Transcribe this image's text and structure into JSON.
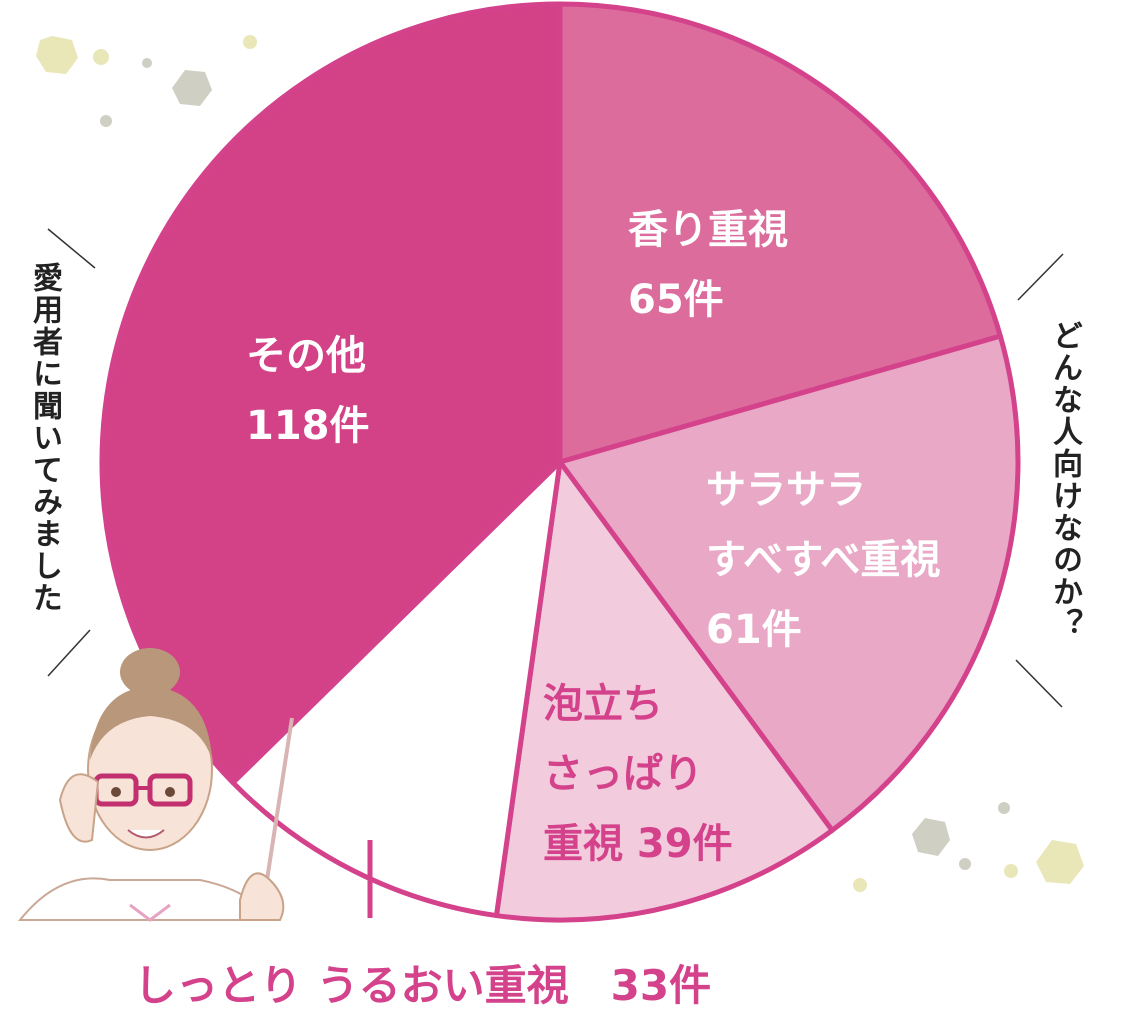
{
  "chart_data": {
    "type": "pie",
    "unit": "件",
    "slices": [
      {
        "label_lines": [
          "香り重視",
          "65件"
        ],
        "value": 65,
        "color": "#db6c9c",
        "label_color": "#ffffff"
      },
      {
        "label_lines": [
          "サラサラ",
          "すべすべ重視",
          "61件"
        ],
        "value": 61,
        "color": "#e8a8c6",
        "label_color": "#ffffff"
      },
      {
        "label_lines": [
          "泡立ち",
          "さっぱり",
          "重視 39件"
        ],
        "value": 39,
        "color": "#f2cbdd",
        "label_color": "#d3428a"
      },
      {
        "label_lines": [],
        "value": 33,
        "color": "#ffffff",
        "label_color": "#d3428a"
      },
      {
        "label_lines": [
          "その他",
          "118件"
        ],
        "value": 118,
        "color": "#d34187",
        "label_color": "#ffffff"
      }
    ],
    "stroke_color": "#d3428a"
  },
  "notes": {
    "left": "愛用者に聞いてみました",
    "right": "どんな人向けなのか？"
  },
  "bottom_label": "しっとり うるおい重視　33件",
  "decor": {
    "character": "teacher-woman-with-glasses-and-pointer",
    "dot_colors": [
      "#e9e6b8",
      "#cfcfc4"
    ]
  }
}
